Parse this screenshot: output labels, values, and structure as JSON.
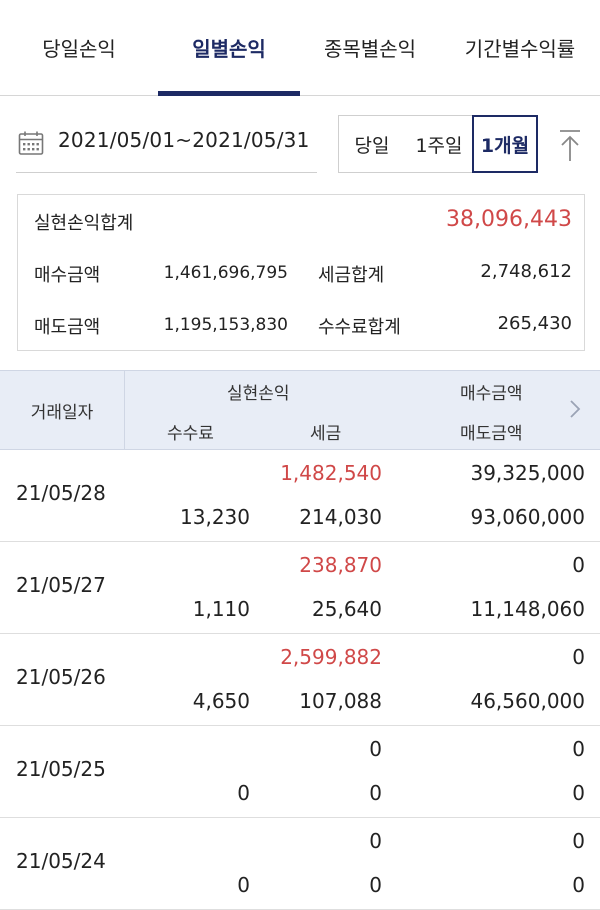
{
  "tabs": [
    {
      "label": "당일손익",
      "active": false
    },
    {
      "label": "일별손익",
      "active": true
    },
    {
      "label": "종목별손익",
      "active": false
    },
    {
      "label": "기간별수익률",
      "active": false
    }
  ],
  "period": {
    "date_range": "2021/05/01~2021/05/31",
    "options": [
      "당일",
      "1주일",
      "1개월"
    ],
    "selected": "1개월"
  },
  "summary": {
    "total_label": "실현손익합계",
    "total_value": "38,096,443",
    "buy_label": "매수금액",
    "buy_value": "1,461,696,795",
    "tax_label": "세금합계",
    "tax_value": "2,748,612",
    "sell_label": "매도금액",
    "sell_value": "1,195,153,830",
    "fee_label": "수수료합계",
    "fee_value": "265,430"
  },
  "table": {
    "headers": {
      "date": "거래일자",
      "realized": "실현손익",
      "fee": "수수료",
      "tax": "세금",
      "buy": "매수금액",
      "sell": "매도금액"
    },
    "rows": [
      {
        "date": "21/05/28",
        "realized": "1,482,540",
        "buy": "39,325,000",
        "fee": "13,230",
        "tax": "214,030",
        "sell": "93,060,000"
      },
      {
        "date": "21/05/27",
        "realized": "238,870",
        "buy": "0",
        "fee": "1,110",
        "tax": "25,640",
        "sell": "11,148,060"
      },
      {
        "date": "21/05/26",
        "realized": "2,599,882",
        "buy": "0",
        "fee": "4,650",
        "tax": "107,088",
        "sell": "46,560,000"
      },
      {
        "date": "21/05/25",
        "realized": "0",
        "buy": "0",
        "fee": "0",
        "tax": "0",
        "sell": "0"
      },
      {
        "date": "21/05/24",
        "realized": "0",
        "buy": "0",
        "fee": "0",
        "tax": "0",
        "sell": "0"
      }
    ]
  },
  "icons": {
    "calendar": "calendar-icon",
    "scroll_top": "scroll-to-top-icon",
    "next": "chevron-right-icon"
  },
  "colors": {
    "accent": "#1d2a64",
    "profit": "#d04848",
    "header_bg": "#e8edf6"
  }
}
